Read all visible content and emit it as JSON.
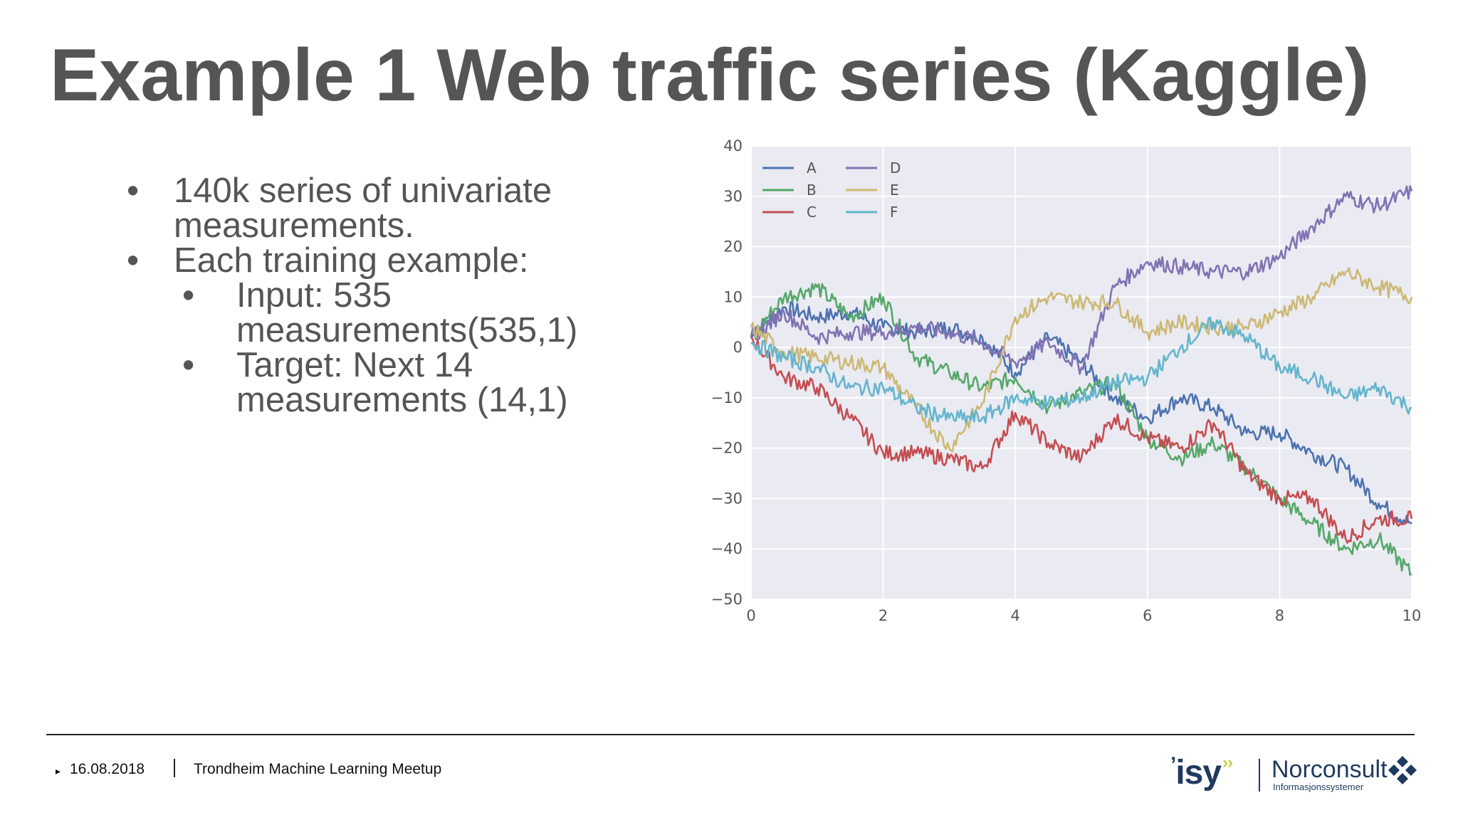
{
  "slide": {
    "title": "Example 1 Web traffic series (Kaggle)",
    "bullets": [
      {
        "level": 1,
        "text": "140k series of univariate measurements."
      },
      {
        "level": 1,
        "text": "Each training example:"
      },
      {
        "level": 2,
        "text": "Input: 535 measurements(535,1)"
      },
      {
        "level": 2,
        "text": "Target: Next 14 measurements (14,1)"
      }
    ],
    "bullet_glyph": "•"
  },
  "footer": {
    "date": "16.08.2018",
    "event": "Trondheim Machine Learning Meetup",
    "arrow_glyph": "▸"
  },
  "logos": {
    "isy": "ISY",
    "norconsult": "Norconsult",
    "norconsult_sub": "Informasjonssystemer"
  },
  "chart_data": {
    "type": "line",
    "title": "",
    "xlabel": "",
    "ylabel": "",
    "xlim": [
      0,
      10
    ],
    "ylim": [
      -50,
      40
    ],
    "x_ticks": [
      0,
      2,
      4,
      6,
      8,
      10
    ],
    "y_ticks": [
      40,
      30,
      20,
      10,
      0,
      -10,
      -20,
      -30,
      -40,
      -50
    ],
    "x_tick_labels": [
      "0",
      "2",
      "4",
      "6",
      "8",
      "10"
    ],
    "y_tick_labels": [
      "40",
      "30",
      "20",
      "10",
      "0",
      "−10",
      "−20",
      "−30",
      "−40",
      "−50"
    ],
    "grid": true,
    "background": "#eaeaf2",
    "legend_position": "top-left",
    "x": [
      0,
      0.5,
      1,
      1.5,
      2,
      2.5,
      3,
      3.5,
      4,
      4.5,
      5,
      5.5,
      6,
      6.5,
      7,
      7.5,
      8,
      8.5,
      9,
      9.5,
      10
    ],
    "series": [
      {
        "name": "A",
        "color": "#4c72b0",
        "values": [
          2,
          8,
          6,
          7,
          4,
          3,
          4,
          2,
          -5,
          2,
          -3,
          -10,
          -14,
          -10,
          -12,
          -17,
          -17,
          -21,
          -24,
          -31,
          -35
        ]
      },
      {
        "name": "B",
        "color": "#55a868",
        "values": [
          2,
          10,
          12,
          6,
          10,
          -2,
          -5,
          -8,
          -6,
          -12,
          -9,
          -7,
          -18,
          -22,
          -19,
          -24,
          -30,
          -35,
          -40,
          -38,
          -45
        ]
      },
      {
        "name": "C",
        "color": "#c44e52",
        "values": [
          2,
          -6,
          -8,
          -14,
          -21,
          -21,
          -22,
          -24,
          -13,
          -19,
          -22,
          -14,
          -18,
          -20,
          -15,
          -25,
          -30,
          -30,
          -38,
          -34,
          -34
        ]
      },
      {
        "name": "D",
        "color": "#8172b2",
        "values": [
          2,
          7,
          2,
          3,
          3,
          4,
          3,
          1,
          -3,
          1,
          -4,
          12,
          17,
          16,
          15,
          15,
          18,
          24,
          30,
          28,
          31
        ]
      },
      {
        "name": "E",
        "color": "#ccb974",
        "values": [
          4,
          -1,
          -2,
          -3,
          -4,
          -12,
          -20,
          -11,
          6,
          10,
          9,
          9,
          3,
          5,
          4,
          4,
          7,
          10,
          15,
          12,
          10
        ]
      },
      {
        "name": "F",
        "color": "#64b5cd",
        "values": [
          1,
          -2,
          -4,
          -8,
          -8,
          -12,
          -14,
          -14,
          -10,
          -11,
          -10,
          -7,
          -6,
          0,
          5,
          2,
          -4,
          -6,
          -10,
          -8,
          -12
        ]
      }
    ]
  }
}
